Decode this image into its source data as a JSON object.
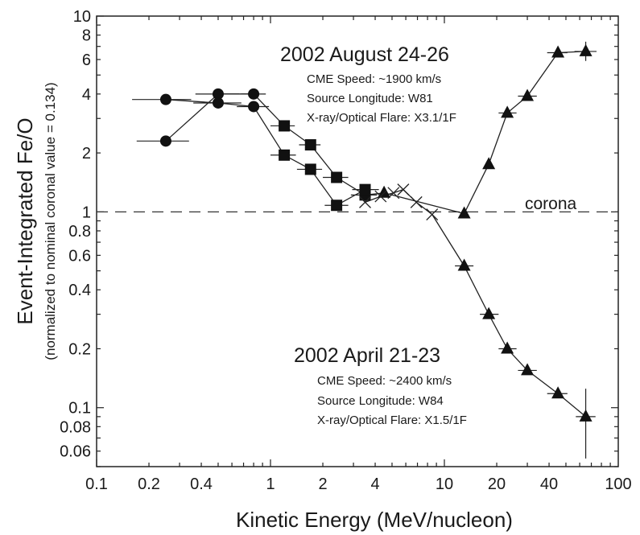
{
  "chart_data": {
    "type": "scatter",
    "x_scale": "log",
    "y_scale": "log",
    "xlim": [
      0.1,
      100
    ],
    "ylim": [
      0.05,
      10
    ],
    "xlabel": "Kinetic Energy (MeV/nucleon)",
    "ylabel": "Event-Integrated Fe/O",
    "ylabel_sub": "(normalized to nominal coronal value = 0.134)",
    "x_tick_labels": [
      {
        "value": 0.1,
        "label": "0.1"
      },
      {
        "value": 0.2,
        "label": "0.2"
      },
      {
        "value": 0.4,
        "label": "0.4"
      },
      {
        "value": 1,
        "label": "1"
      },
      {
        "value": 2,
        "label": "2"
      },
      {
        "value": 4,
        "label": "4"
      },
      {
        "value": 10,
        "label": "10"
      },
      {
        "value": 20,
        "label": "20"
      },
      {
        "value": 40,
        "label": "40"
      },
      {
        "value": 100,
        "label": "100"
      }
    ],
    "y_tick_labels": [
      {
        "value": 0.06,
        "label": "0.06"
      },
      {
        "value": 0.08,
        "label": "0.08"
      },
      {
        "value": 0.1,
        "label": "0.1"
      },
      {
        "value": 0.2,
        "label": "0.2"
      },
      {
        "value": 0.4,
        "label": "0.4"
      },
      {
        "value": 0.6,
        "label": "0.6"
      },
      {
        "value": 0.8,
        "label": "0.8"
      },
      {
        "value": 1,
        "label": "1"
      },
      {
        "value": 2,
        "label": "2"
      },
      {
        "value": 4,
        "label": "4"
      },
      {
        "value": 6,
        "label": "6"
      },
      {
        "value": 8,
        "label": "8"
      },
      {
        "value": 10,
        "label": "10"
      }
    ],
    "reference_line": {
      "y": 1,
      "label": "corona",
      "style": "dashed"
    },
    "events": [
      {
        "title": "2002 August 24-26",
        "lines": [
          "CME Speed: ~1900 km/s",
          "Source Longitude: W81",
          "X-ray/Optical Flare: X3.1/1F"
        ],
        "series": [
          {
            "marker": "circle",
            "points": [
              {
                "x": 0.25,
                "y": 2.3,
                "xerr": [
                  0.17,
                  0.34
                ]
              },
              {
                "x": 0.5,
                "y": 4.0,
                "xerr": [
                  0.37,
                  0.66
                ]
              },
              {
                "x": 0.8,
                "y": 4.0,
                "xerr": [
                  0.68,
                  0.94
                ]
              }
            ]
          },
          {
            "marker": "square",
            "points": [
              {
                "x": 1.2,
                "y": 2.75,
                "xerr": [
                  1.0,
                  1.38
                ]
              },
              {
                "x": 1.7,
                "y": 2.2,
                "xerr": [
                  1.46,
                  1.94
                ]
              },
              {
                "x": 2.4,
                "y": 1.5,
                "xerr": [
                  2.0,
                  2.8
                ]
              },
              {
                "x": 3.5,
                "y": 1.22,
                "xerr": [
                  2.9,
                  4.1
                ]
              }
            ]
          }
        ]
      },
      {
        "title": "2002 April 21-23",
        "lines": [
          "CME Speed: ~2400 km/s",
          "Source Longitude: W84",
          "X-ray/Optical Flare: X1.5/1F"
        ],
        "series": [
          {
            "marker": "circle",
            "points": [
              {
                "x": 0.25,
                "y": 3.75,
                "xerr": [
                  0.16,
                  0.35
                ]
              },
              {
                "x": 0.5,
                "y": 3.6,
                "xerr": [
                  0.36,
                  0.68
                ]
              },
              {
                "x": 0.8,
                "y": 3.45,
                "xerr": [
                  0.64,
                  0.98
                ]
              }
            ]
          },
          {
            "marker": "square",
            "points": [
              {
                "x": 1.2,
                "y": 1.95,
                "xerr": [
                  1.0,
                  1.4
                ]
              },
              {
                "x": 1.7,
                "y": 1.65,
                "xerr": [
                  1.42,
                  1.98
                ]
              },
              {
                "x": 2.4,
                "y": 1.08,
                "xerr": [
                  2.05,
                  2.8
                ]
              },
              {
                "x": 3.5,
                "y": 1.3,
                "xerr": [
                  2.95,
                  4.2
                ]
              }
            ]
          },
          {
            "marker": "cross",
            "points": [
              {
                "x": 3.5,
                "y": 1.12
              },
              {
                "x": 4.3,
                "y": 1.2
              },
              {
                "x": 5.1,
                "y": 1.25
              },
              {
                "x": 5.8,
                "y": 1.3
              },
              {
                "x": 6.9,
                "y": 1.12
              },
              {
                "x": 8.5,
                "y": 0.97
              }
            ]
          },
          {
            "marker": "triangle",
            "points": [
              {
                "x": 13,
                "y": 0.53,
                "xerr": [
                  11.5,
                  14.7
                ]
              },
              {
                "x": 18,
                "y": 0.3,
                "xerr": [
                  16,
                  20.5
                ]
              },
              {
                "x": 23,
                "y": 0.2,
                "xerr": [
                  20.5,
                  26
                ]
              },
              {
                "x": 30,
                "y": 0.155,
                "xerr": [
                  26.5,
                  34
                ]
              },
              {
                "x": 45,
                "y": 0.118,
                "xerr": [
                  39,
                  51
                ]
              },
              {
                "x": 65,
                "y": 0.09,
                "xerr": [
                  57,
                  74
                ],
                "yerr": [
                  0.055,
                  0.125
                ]
              }
            ]
          }
        ]
      }
    ],
    "event1_tail": {
      "marker": "triangle",
      "points": [
        {
          "x": 4.5,
          "y": 1.25
        },
        {
          "x": 13,
          "y": 0.98
        },
        {
          "x": 18,
          "y": 1.75
        },
        {
          "x": 23,
          "y": 3.2,
          "xerr": [
            20.5,
            26
          ]
        },
        {
          "x": 30,
          "y": 3.9,
          "xerr": [
            26.5,
            34
          ]
        },
        {
          "x": 45,
          "y": 6.5,
          "xerr": [
            39,
            51
          ]
        },
        {
          "x": 65,
          "y": 6.6,
          "xerr": [
            56,
            75
          ],
          "yerr": [
            5.9,
            7.4
          ]
        }
      ]
    }
  }
}
